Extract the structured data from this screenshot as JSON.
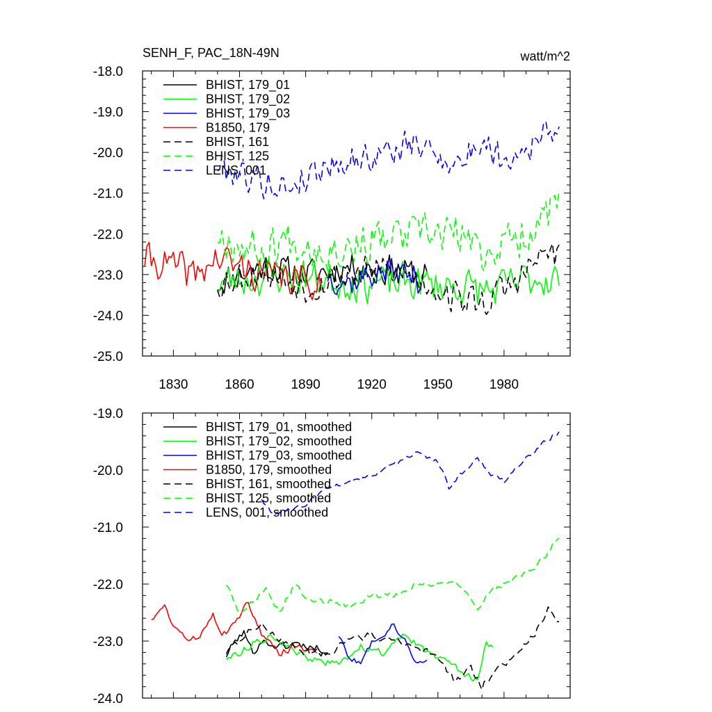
{
  "title": "SENH_F, PAC_18N-49N",
  "units": "watt/m^2",
  "chart_data": [
    {
      "type": "line",
      "panel": "top",
      "title": "SENH_F, PAC_18N-49N",
      "units_label": "watt/m^2",
      "xlim": [
        1816,
        2010
      ],
      "ylim": [
        -25.0,
        -18.0
      ],
      "grid": false,
      "legend_position": "top-left",
      "xticks": [
        1830,
        1860,
        1890,
        1920,
        1950,
        1980
      ],
      "xtick_labels": [
        "1830",
        "1860",
        "1890",
        "1920",
        "1950",
        "1980"
      ],
      "yticks": [
        -25,
        -24,
        -23,
        -22,
        -21,
        -20,
        -19,
        -18
      ],
      "ytick_labels": [
        "-25.0",
        "-24.0",
        "-23.0",
        "-22.0",
        "-21.0",
        "-20.0",
        "-19.0",
        "-18.0"
      ],
      "series": [
        {
          "name": "BHIST, 179_01",
          "label": "BHIST, 179_01",
          "color": "#000000",
          "dash": "solid",
          "x_start": 1850,
          "x_end": 1945,
          "anchors": [
            [
              1850,
              -23.2
            ],
            [
              1870,
              -22.8
            ],
            [
              1890,
              -23.0
            ],
            [
              1910,
              -22.8
            ],
            [
              1930,
              -22.9
            ],
            [
              1945,
              -23.0
            ]
          ],
          "amp": 0.45,
          "seed": 11
        },
        {
          "name": "BHIST, 179_02",
          "label": "BHIST, 179_02",
          "color": "#00ff00",
          "dash": "solid",
          "x_start": 1850,
          "x_end": 2005,
          "anchors": [
            [
              1850,
              -23.2
            ],
            [
              1880,
              -23.0
            ],
            [
              1910,
              -23.2
            ],
            [
              1940,
              -23.2
            ],
            [
              1960,
              -23.3
            ],
            [
              1975,
              -23.4
            ],
            [
              1990,
              -23.1
            ],
            [
              2005,
              -23.1
            ]
          ],
          "amp": 0.55,
          "seed": 23
        },
        {
          "name": "BHIST, 179_03",
          "label": "BHIST, 179_03",
          "color": "#0000ff",
          "dash": "solid",
          "x_start": 1900,
          "x_end": 1942,
          "anchors": [
            [
              1900,
              -23.0
            ],
            [
              1910,
              -23.2
            ],
            [
              1920,
              -23.0
            ],
            [
              1930,
              -22.9
            ],
            [
              1942,
              -23.1
            ]
          ],
          "amp": 0.45,
          "seed": 37
        },
        {
          "name": "B1850, 179",
          "label": "B1850, 179",
          "color": "#ff0000",
          "dash": "solid",
          "x_start": 1817,
          "x_end": 1897,
          "anchors": [
            [
              1817,
              -22.6
            ],
            [
              1830,
              -22.8
            ],
            [
              1840,
              -23.0
            ],
            [
              1850,
              -22.6
            ],
            [
              1870,
              -23.0
            ],
            [
              1897,
              -23.2
            ]
          ],
          "amp": 0.5,
          "seed": 41
        },
        {
          "name": "BHIST, 161",
          "label": "BHIST, 161",
          "color": "#000000",
          "dash": "dashed",
          "x_start": 1850,
          "x_end": 2005,
          "anchors": [
            [
              1850,
              -23.2
            ],
            [
              1870,
              -22.9
            ],
            [
              1890,
              -23.3
            ],
            [
              1910,
              -23.0
            ],
            [
              1930,
              -22.9
            ],
            [
              1945,
              -23.2
            ],
            [
              1960,
              -23.6
            ],
            [
              1970,
              -23.7
            ],
            [
              1985,
              -23.2
            ],
            [
              2000,
              -22.4
            ],
            [
              2005,
              -22.6
            ]
          ],
          "amp": 0.5,
          "seed": 53
        },
        {
          "name": "BHIST, 125",
          "label": "BHIST, 125",
          "color": "#00ff00",
          "dash": "dashed",
          "x_start": 1850,
          "x_end": 2005,
          "anchors": [
            [
              1850,
              -22.0
            ],
            [
              1870,
              -22.5
            ],
            [
              1880,
              -22.1
            ],
            [
              1900,
              -22.4
            ],
            [
              1920,
              -22.2
            ],
            [
              1940,
              -22.0
            ],
            [
              1960,
              -22.0
            ],
            [
              1970,
              -22.5
            ],
            [
              1990,
              -22.0
            ],
            [
              2005,
              -21.2
            ]
          ],
          "amp": 0.6,
          "seed": 67
        },
        {
          "name": "LENS, 001",
          "label": "LENS, 001",
          "color": "#0000ff",
          "dash": "dashed",
          "x_start": 1850,
          "x_end": 2005,
          "anchors": [
            [
              1850,
              -20.3
            ],
            [
              1865,
              -20.6
            ],
            [
              1880,
              -20.9
            ],
            [
              1900,
              -20.3
            ],
            [
              1920,
              -20.1
            ],
            [
              1940,
              -19.8
            ],
            [
              1960,
              -20.3
            ],
            [
              1970,
              -19.7
            ],
            [
              1980,
              -20.2
            ],
            [
              1995,
              -19.7
            ],
            [
              2005,
              -19.3
            ]
          ],
          "amp": 0.45,
          "seed": 79
        }
      ]
    },
    {
      "type": "line",
      "panel": "bottom",
      "xlim": [
        1816,
        2010
      ],
      "ylim": [
        -24.0,
        -19.0
      ],
      "grid": false,
      "legend_position": "top-left",
      "xticks": [
        1830,
        1860,
        1890,
        1920,
        1950,
        1980
      ],
      "xtick_labels": [],
      "yticks": [
        -24,
        -23,
        -22,
        -21,
        -20,
        -19
      ],
      "ytick_labels": [
        "-24.0",
        "-23.0",
        "-22.0",
        "-21.0",
        "-20.0",
        "-19.0"
      ],
      "series": [
        {
          "name": "BHIST, 179_01, smoothed",
          "label": "BHIST, 179_01, smoothed",
          "color": "#000000",
          "dash": "solid",
          "x_start": 1854,
          "x_end": 1900,
          "anchors": [
            [
              1854,
              -23.25
            ],
            [
              1858,
              -23.0
            ],
            [
              1862,
              -22.85
            ],
            [
              1866,
              -23.2
            ],
            [
              1870,
              -23.0
            ],
            [
              1878,
              -23.1
            ],
            [
              1886,
              -23.05
            ],
            [
              1892,
              -23.1
            ],
            [
              1900,
              -23.15
            ]
          ],
          "amp": 0.08,
          "seed": 101
        },
        {
          "name": "BHIST, 179_02, smoothed",
          "label": "BHIST, 179_02, smoothed",
          "color": "#00ff00",
          "dash": "solid",
          "x_start": 1854,
          "x_end": 1975,
          "anchors": [
            [
              1854,
              -23.3
            ],
            [
              1860,
              -23.2
            ],
            [
              1868,
              -23.0
            ],
            [
              1875,
              -22.9
            ],
            [
              1885,
              -23.2
            ],
            [
              1895,
              -23.35
            ],
            [
              1905,
              -23.4
            ],
            [
              1915,
              -23.1
            ],
            [
              1925,
              -23.2
            ],
            [
              1935,
              -22.9
            ],
            [
              1945,
              -23.2
            ],
            [
              1955,
              -23.3
            ],
            [
              1962,
              -23.6
            ],
            [
              1968,
              -23.7
            ],
            [
              1972,
              -23.0
            ],
            [
              1975,
              -23.1
            ]
          ],
          "amp": 0.07,
          "seed": 113
        },
        {
          "name": "BHIST, 179_03, smoothed",
          "label": "BHIST, 179_03, smoothed",
          "color": "#0000ff",
          "dash": "solid",
          "x_start": 1905,
          "x_end": 1945,
          "anchors": [
            [
              1905,
              -22.9
            ],
            [
              1910,
              -23.3
            ],
            [
              1915,
              -23.4
            ],
            [
              1920,
              -23.0
            ],
            [
              1925,
              -22.9
            ],
            [
              1930,
              -22.7
            ],
            [
              1935,
              -23.0
            ],
            [
              1940,
              -23.4
            ],
            [
              1945,
              -23.3
            ]
          ],
          "amp": 0.06,
          "seed": 127
        },
        {
          "name": "B1850, 179, smoothed",
          "label": "B1850, 179, smoothed",
          "color": "#ff0000",
          "dash": "solid",
          "x_start": 1820,
          "x_end": 1895,
          "anchors": [
            [
              1820,
              -22.6
            ],
            [
              1826,
              -22.4
            ],
            [
              1830,
              -22.7
            ],
            [
              1836,
              -23.0
            ],
            [
              1842,
              -22.9
            ],
            [
              1848,
              -22.5
            ],
            [
              1852,
              -22.9
            ],
            [
              1858,
              -22.7
            ],
            [
              1864,
              -22.3
            ],
            [
              1870,
              -22.9
            ],
            [
              1878,
              -23.2
            ],
            [
              1886,
              -23.1
            ],
            [
              1895,
              -23.15
            ]
          ],
          "amp": 0.07,
          "seed": 131
        },
        {
          "name": "BHIST, 161, smoothed",
          "label": "BHIST, 161, smoothed",
          "color": "#000000",
          "dash": "dashed",
          "x_start": 1854,
          "x_end": 2005,
          "anchors": [
            [
              1854,
              -23.2
            ],
            [
              1862,
              -22.9
            ],
            [
              1870,
              -22.7
            ],
            [
              1880,
              -23.0
            ],
            [
              1890,
              -23.2
            ],
            [
              1900,
              -23.2
            ],
            [
              1910,
              -23.0
            ],
            [
              1920,
              -22.9
            ],
            [
              1930,
              -23.0
            ],
            [
              1940,
              -23.1
            ],
            [
              1950,
              -23.3
            ],
            [
              1958,
              -23.7
            ],
            [
              1965,
              -23.5
            ],
            [
              1970,
              -23.8
            ],
            [
              1978,
              -23.4
            ],
            [
              1985,
              -23.3
            ],
            [
              1995,
              -22.8
            ],
            [
              2000,
              -22.4
            ],
            [
              2005,
              -22.65
            ]
          ],
          "amp": 0.08,
          "seed": 137
        },
        {
          "name": "BHIST, 125, smoothed",
          "label": "BHIST, 125, smoothed",
          "color": "#00ff00",
          "dash": "dashed",
          "x_start": 1854,
          "x_end": 2005,
          "anchors": [
            [
              1854,
              -22.0
            ],
            [
              1860,
              -22.5
            ],
            [
              1866,
              -22.3
            ],
            [
              1872,
              -22.1
            ],
            [
              1878,
              -22.5
            ],
            [
              1885,
              -22.0
            ],
            [
              1892,
              -22.3
            ],
            [
              1900,
              -22.3
            ],
            [
              1910,
              -22.4
            ],
            [
              1920,
              -22.2
            ],
            [
              1930,
              -22.2
            ],
            [
              1940,
              -22.0
            ],
            [
              1950,
              -22.0
            ],
            [
              1960,
              -22.0
            ],
            [
              1968,
              -22.4
            ],
            [
              1975,
              -22.1
            ],
            [
              1985,
              -21.9
            ],
            [
              1995,
              -21.7
            ],
            [
              2005,
              -21.15
            ]
          ],
          "amp": 0.06,
          "seed": 149
        },
        {
          "name": "LENS, 001, smoothed",
          "label": "LENS, 001, smoothed",
          "color": "#0000ff",
          "dash": "dashed",
          "x_start": 1870,
          "x_end": 2005,
          "anchors": [
            [
              1870,
              -20.5
            ],
            [
              1876,
              -20.8
            ],
            [
              1882,
              -20.7
            ],
            [
              1890,
              -20.6
            ],
            [
              1900,
              -20.3
            ],
            [
              1910,
              -20.2
            ],
            [
              1920,
              -20.1
            ],
            [
              1930,
              -19.9
            ],
            [
              1940,
              -19.7
            ],
            [
              1950,
              -19.85
            ],
            [
              1955,
              -20.3
            ],
            [
              1962,
              -20.0
            ],
            [
              1968,
              -19.8
            ],
            [
              1975,
              -20.1
            ],
            [
              1980,
              -20.2
            ],
            [
              1985,
              -19.95
            ],
            [
              1992,
              -19.75
            ],
            [
              2000,
              -19.45
            ],
            [
              2005,
              -19.35
            ]
          ],
          "amp": 0.05,
          "seed": 163
        }
      ]
    }
  ]
}
